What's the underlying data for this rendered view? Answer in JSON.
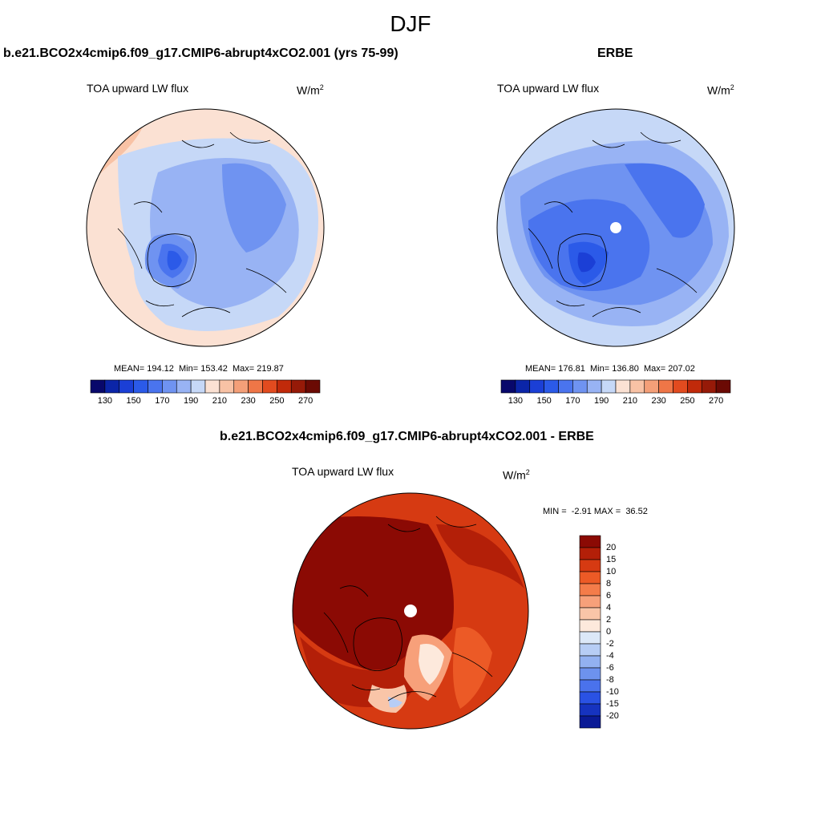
{
  "figure": {
    "season": "DJF",
    "panel_left": {
      "title": "b.e21.BCO2x4cmip6.f09_g17.CMIP6-abrupt4xCO2.001 (yrs 75-99)",
      "variable": "TOA upward LW flux",
      "units_base": "W/m",
      "units_exp": "2",
      "stats": "MEAN= 194.12  Min= 153.42  Max= 219.87"
    },
    "panel_right": {
      "title": "ERBE",
      "variable": "TOA upward LW flux",
      "units_base": "W/m",
      "units_exp": "2",
      "stats": "MEAN= 176.81  Min= 136.80  Max= 207.02"
    },
    "panel_diff": {
      "title": "b.e21.BCO2x4cmip6.f09_g17.CMIP6-abrupt4xCO2.001 - ERBE",
      "variable": "TOA upward LW flux",
      "units_base": "W/m",
      "units_exp": "2",
      "stats": "MIN =  -2.91 MAX =  36.52"
    }
  },
  "chart_data": [
    {
      "type": "polar-map",
      "title": "b.e21.BCO2x4cmip6.f09_g17.CMIP6-abrupt4xCO2.001 (yrs 75-99)",
      "field": "TOA upward LW flux",
      "units": "W/m2",
      "mean": 194.12,
      "min": 153.42,
      "max": 219.87,
      "colorbar": {
        "levels": [
          130,
          140,
          150,
          160,
          170,
          180,
          190,
          200,
          210,
          220,
          230,
          240,
          250,
          260,
          270
        ],
        "tick_labels": [
          "130",
          "150",
          "170",
          "190",
          "210",
          "230",
          "250",
          "270"
        ],
        "colors": [
          "#08086b",
          "#0b25a8",
          "#1b3fd6",
          "#2b5ae8",
          "#4a74ee",
          "#6f93f1",
          "#98b3f4",
          "#c6d8f7",
          "#fbe1d3",
          "#f8c2a5",
          "#f49f78",
          "#ef7647",
          "#e24b1f",
          "#c12a0a",
          "#961a08",
          "#6b0a04"
        ]
      }
    },
    {
      "type": "polar-map",
      "title": "ERBE",
      "field": "TOA upward LW flux",
      "units": "W/m2",
      "mean": 176.81,
      "min": 136.8,
      "max": 207.02,
      "colorbar": {
        "levels": [
          130,
          140,
          150,
          160,
          170,
          180,
          190,
          200,
          210,
          220,
          230,
          240,
          250,
          260,
          270
        ],
        "tick_labels": [
          "130",
          "150",
          "170",
          "190",
          "210",
          "230",
          "250",
          "270"
        ],
        "colors": [
          "#08086b",
          "#0b25a8",
          "#1b3fd6",
          "#2b5ae8",
          "#4a74ee",
          "#6f93f1",
          "#98b3f4",
          "#c6d8f7",
          "#fbe1d3",
          "#f8c2a5",
          "#f49f78",
          "#ef7647",
          "#e24b1f",
          "#c12a0a",
          "#961a08",
          "#6b0a04"
        ]
      }
    },
    {
      "type": "polar-map",
      "title": "b.e21.BCO2x4cmip6.f09_g17.CMIP6-abrupt4xCO2.001 - ERBE",
      "field": "TOA upward LW flux",
      "units": "W/m2",
      "min": -2.91,
      "max": 36.52,
      "colorbar": {
        "levels": [
          -20,
          -15,
          -10,
          -8,
          -6,
          -4,
          -2,
          0,
          2,
          4,
          6,
          8,
          10,
          15,
          20
        ],
        "tick_labels": [
          "20",
          "15",
          "10",
          "8",
          "6",
          "4",
          "2",
          "0",
          "-2",
          "-4",
          "-6",
          "-8",
          "-10",
          "-15",
          "-20"
        ],
        "colors_top_to_bottom": [
          "#8b0a04",
          "#b31f08",
          "#d63a12",
          "#ec5a26",
          "#f47c4a",
          "#f7a07a",
          "#f9c5a8",
          "#fde9dc",
          "#dce8f8",
          "#b7cdf5",
          "#93b1f1",
          "#6d92ee",
          "#4a72ec",
          "#2a52e4",
          "#1633c0",
          "#0a1a96"
        ]
      }
    }
  ]
}
